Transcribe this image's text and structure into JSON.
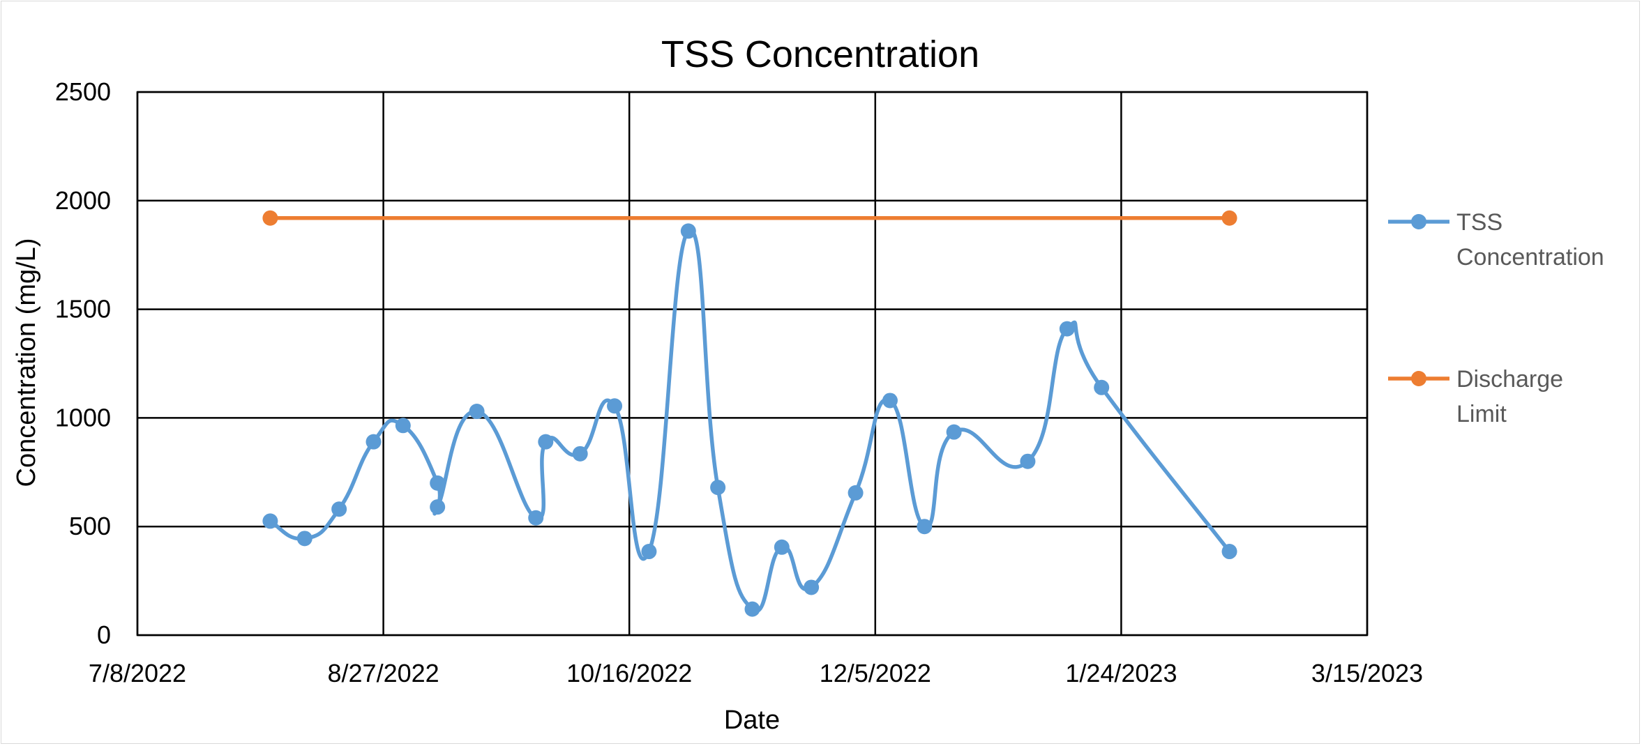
{
  "chart_data": {
    "type": "line",
    "title": "TSS Concentration",
    "xlabel": "Date",
    "ylabel": "Concentration (mg/L)",
    "x_axis": {
      "min": "2022-07-08",
      "max": "2023-03-15",
      "ticks": [
        "2022-07-08",
        "2022-08-27",
        "2022-10-16",
        "2022-12-05",
        "2023-01-24",
        "2023-03-15"
      ],
      "tick_labels": [
        "7/8/2022",
        "8/27/2022",
        "10/16/2022",
        "12/5/2022",
        "1/24/2023",
        "3/15/2023"
      ]
    },
    "y_axis": {
      "min": 0,
      "max": 2500,
      "ticks": [
        0,
        500,
        1000,
        1500,
        2000,
        2500
      ],
      "tick_labels": [
        "0",
        "500",
        "1000",
        "1500",
        "2000",
        "2500"
      ]
    },
    "grid": true,
    "legend_position": "right",
    "series": [
      {
        "name": "TSS Concentration",
        "color": "#5B9BD5",
        "smooth": true,
        "x": [
          "2022-08-04",
          "2022-08-11",
          "2022-08-18",
          "2022-08-25",
          "2022-08-31",
          "2022-09-07",
          "2022-09-07",
          "2022-09-15",
          "2022-09-27",
          "2022-09-29",
          "2022-10-06",
          "2022-10-13",
          "2022-10-20",
          "2022-10-28",
          "2022-11-03",
          "2022-11-10",
          "2022-11-16",
          "2022-11-22",
          "2022-12-01",
          "2022-12-08",
          "2022-12-15",
          "2022-12-21",
          "2023-01-05",
          "2023-01-13",
          "2023-01-20",
          "2023-02-15"
        ],
        "y": [
          525,
          445,
          580,
          890,
          965,
          700,
          590,
          1030,
          540,
          890,
          835,
          1055,
          385,
          1860,
          680,
          120,
          405,
          220,
          655,
          1080,
          500,
          935,
          800,
          1410,
          1140,
          385
        ]
      },
      {
        "name": "Discharge Limit",
        "color": "#ED7D31",
        "smooth": false,
        "x": [
          "2022-08-04",
          "2023-02-15"
        ],
        "y": [
          1920,
          1920
        ]
      }
    ]
  }
}
